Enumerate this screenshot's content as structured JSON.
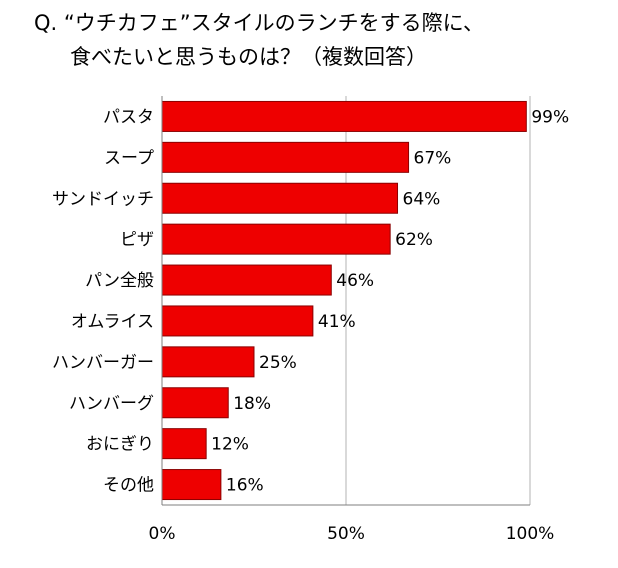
{
  "question": {
    "line1": "Q. “ウチカフェ”スタイルのランチをする際に、",
    "line2": "食べたいと思うものは？（複数回答）"
  },
  "chart_data": {
    "type": "bar",
    "orientation": "horizontal",
    "categories": [
      "パスタ",
      "スープ",
      "サンドイッチ",
      "ピザ",
      "パン全般",
      "オムライス",
      "ハンバーガー",
      "ハンバーグ",
      "おにぎり",
      "その他"
    ],
    "values": [
      99,
      67,
      64,
      62,
      46,
      41,
      25,
      18,
      12,
      16
    ],
    "data_labels": [
      "99%",
      "67%",
      "64%",
      "62%",
      "46%",
      "41%",
      "25%",
      "18%",
      "12%",
      "16%"
    ],
    "xlim": [
      0,
      100
    ],
    "x_ticks": [
      {
        "value": 0,
        "label": "0%"
      },
      {
        "value": 50,
        "label": "50%"
      },
      {
        "value": 100,
        "label": "100%"
      }
    ],
    "grid": "vertical at 50% and 100%",
    "legend": "none",
    "bar_color": "#ee0000",
    "bar_edge_color": "#8b0000",
    "inside_label_color": "#ffffff",
    "grid_color": "#b3b3b3"
  }
}
